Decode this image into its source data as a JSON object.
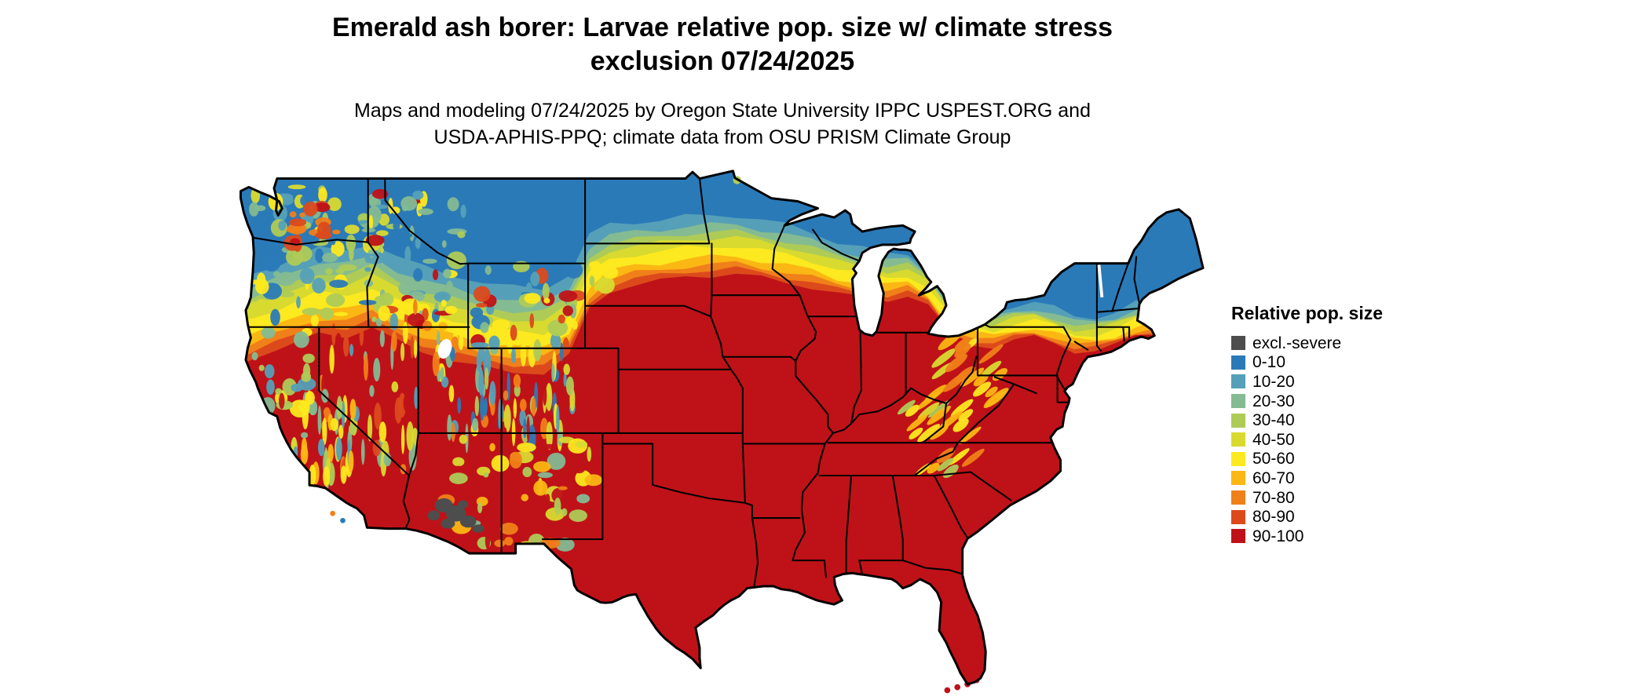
{
  "title": {
    "line1": "Emerald ash borer: Larvae relative pop. size w/ climate stress",
    "line2": "exclusion 07/24/2025"
  },
  "subtitle": {
    "line1": "Maps and modeling 07/24/2025 by Oregon State University IPPC USPEST.ORG and",
    "line2": "USDA-APHIS-PPQ; climate data from OSU PRISM Climate Group"
  },
  "legend": {
    "title": "Relative pop. size",
    "items": [
      {
        "label": "excl.-severe",
        "color": "#4d4d4d"
      },
      {
        "label": "0-10",
        "color": "#2b7ab8"
      },
      {
        "label": "10-20",
        "color": "#55a0b8"
      },
      {
        "label": "20-30",
        "color": "#84bb92"
      },
      {
        "label": "30-40",
        "color": "#aecb57"
      },
      {
        "label": "40-50",
        "color": "#d8da30"
      },
      {
        "label": "50-60",
        "color": "#fde91f"
      },
      {
        "label": "60-70",
        "color": "#fbb713"
      },
      {
        "label": "70-80",
        "color": "#f08019"
      },
      {
        "label": "80-90",
        "color": "#dc4a1c"
      },
      {
        "label": "90-100",
        "color": "#bf1218"
      }
    ]
  },
  "map": {
    "region": "Continental United States",
    "pattern_summary": "High relative population (90-100, dark red) across the South, East and lower Midwest; graded transition band of orange-yellow-green through the central Plains, upper Midwest and interior Northeast; low values (0-10, blue) across the northern tier and Pacific Northwest; mottled mountain terrain in the West; excluded-severe (gray) patch in southern Arizona.",
    "water_color": "#ffffff",
    "border_color": "#000000"
  }
}
